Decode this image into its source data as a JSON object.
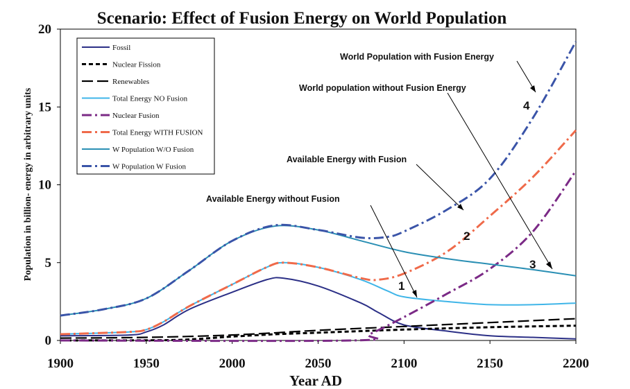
{
  "chart_data": {
    "type": "line",
    "title": "Scenario: Effect of Fusion Energy on World Population",
    "xlabel": "Year AD",
    "ylabel": "Population in billion- energy in arbitrary units",
    "xlim": [
      1900,
      2200
    ],
    "ylim": [
      0,
      20
    ],
    "xticks": [
      1900,
      1950,
      2000,
      2050,
      2100,
      2150,
      2200
    ],
    "yticks": [
      0,
      5,
      10,
      15,
      20
    ],
    "grid": false,
    "legend_position": "top-left",
    "series": [
      {
        "name": "Fossil",
        "color": "#2b2f86",
        "dash": "solid",
        "x": [
          1900,
          1940,
          1950,
          1960,
          1975,
          2000,
          2020,
          2030,
          2050,
          2075,
          2085,
          2100,
          2125,
          2150,
          2175,
          2200
        ],
        "y": [
          0.3,
          0.35,
          0.55,
          1.0,
          2.0,
          3.1,
          3.9,
          4.0,
          3.5,
          2.4,
          1.8,
          1.0,
          0.6,
          0.3,
          0.2,
          0.1
        ]
      },
      {
        "name": "Nuclear Fission",
        "color": "#000000",
        "dash": "dot",
        "x": [
          1900,
          1960,
          1980,
          2000,
          2025,
          2050,
          2100,
          2150,
          2200
        ],
        "y": [
          0.0,
          0.02,
          0.1,
          0.25,
          0.4,
          0.5,
          0.7,
          0.85,
          0.95
        ]
      },
      {
        "name": "Renewables",
        "color": "#000000",
        "dash": "longdash",
        "x": [
          1900,
          1950,
          2000,
          2050,
          2100,
          2150,
          2200
        ],
        "y": [
          0.15,
          0.2,
          0.35,
          0.65,
          0.9,
          1.15,
          1.4
        ]
      },
      {
        "name": "Total Energy NO Fusion",
        "color": "#3fb5e8",
        "dash": "solid",
        "x": [
          1900,
          1940,
          1950,
          1960,
          1975,
          2000,
          2020,
          2030,
          2050,
          2075,
          2090,
          2100,
          2125,
          2150,
          2175,
          2200
        ],
        "y": [
          0.4,
          0.55,
          0.7,
          1.2,
          2.2,
          3.6,
          4.7,
          5.0,
          4.7,
          3.9,
          3.2,
          2.8,
          2.5,
          2.3,
          2.3,
          2.4
        ]
      },
      {
        "name": "Nuclear Fusion",
        "color": "#7b2a86",
        "dash": "dashdot",
        "x": [
          1900,
          2070,
          2080,
          2100,
          2125,
          2150,
          2175,
          2200
        ],
        "y": [
          0.0,
          0.0,
          0.4,
          1.5,
          3.0,
          4.6,
          7.0,
          10.9
        ]
      },
      {
        "name": "Total Energy WITH FUSION",
        "color": "#ef6a4a",
        "dash": "dashdot",
        "x": [
          1900,
          1940,
          1950,
          1960,
          1975,
          2000,
          2020,
          2030,
          2050,
          2075,
          2085,
          2100,
          2125,
          2150,
          2175,
          2200
        ],
        "y": [
          0.4,
          0.55,
          0.7,
          1.2,
          2.2,
          3.6,
          4.7,
          5.0,
          4.7,
          4.0,
          3.9,
          4.3,
          5.7,
          8.0,
          10.5,
          13.5
        ]
      },
      {
        "name": "W Population W/O Fusion",
        "color": "#2a8fb4",
        "dash": "solid",
        "x": [
          1900,
          1925,
          1950,
          1975,
          2000,
          2025,
          2050,
          2075,
          2100,
          2125,
          2150,
          2175,
          2200
        ],
        "y": [
          1.6,
          2.0,
          2.7,
          4.5,
          6.4,
          7.35,
          7.1,
          6.4,
          5.7,
          5.25,
          4.9,
          4.55,
          4.15
        ]
      },
      {
        "name": "W Population W Fusion",
        "color": "#3a54a8",
        "dash": "dashdot",
        "x": [
          1900,
          1925,
          1950,
          1975,
          2000,
          2025,
          2050,
          2075,
          2090,
          2100,
          2125,
          2150,
          2175,
          2200
        ],
        "y": [
          1.6,
          2.0,
          2.7,
          4.5,
          6.4,
          7.4,
          7.1,
          6.6,
          6.65,
          7.0,
          8.4,
          10.4,
          14.3,
          19.2
        ]
      }
    ],
    "annotations": [
      {
        "text": "World Population with Fusion Energy",
        "number": "4"
      },
      {
        "text": "World population without Fusion Energy",
        "number": "3"
      },
      {
        "text": "Available Energy with Fusion",
        "number": "2"
      },
      {
        "text": "Available Energy without Fusion",
        "number": "1"
      }
    ]
  }
}
